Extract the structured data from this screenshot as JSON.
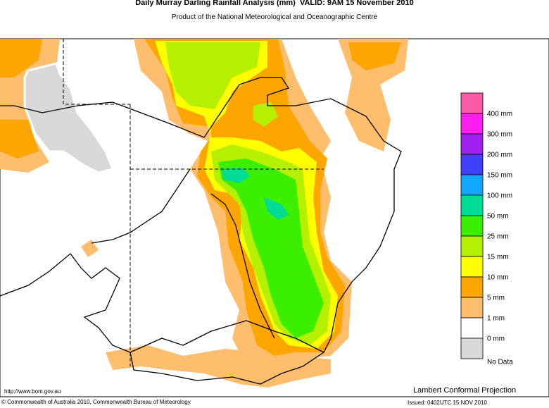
{
  "header": {
    "title": "Daily Murray Darling Rainfall Analysis (mm)  VALID: 9AM 15 November 2010",
    "subtitle": "Product of the National Meteorological and Oceanographic Centre"
  },
  "legend": {
    "swatches": [
      "#ff5aa8",
      "#ff1ef0",
      "#a020f0",
      "#4040ff",
      "#10a8ff",
      "#00dc96",
      "#3cef00",
      "#b4f000",
      "#ffff00",
      "#ffa500",
      "#ffbe6e",
      "#ffffff",
      "#d8d8d8"
    ],
    "labels": [
      "400 mm",
      "300 mm",
      "200 mm",
      "150 mm",
      "100 mm",
      "50 mm",
      "25 mm",
      "15 mm",
      "10 mm",
      "5 mm",
      "1 mm",
      "0 mm",
      "No Data"
    ]
  },
  "footer": {
    "url": "http://www.bom.gov.au",
    "projection": "Lambert Conformal Projection",
    "copyright": "© Commonwealth of Australia 2010, Commonwealth Bureau of Meteorology",
    "issued": "Issued: 0402UTC 15 NOV 2010"
  }
}
